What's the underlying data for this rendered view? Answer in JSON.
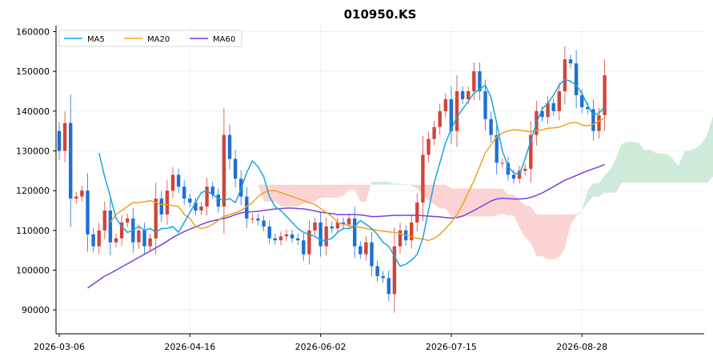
{
  "chart_data": {
    "type": "candlestick",
    "title": "010950.KS",
    "xlabel": "",
    "ylabel": "",
    "ylim": [
      84000,
      161500
    ],
    "y_ticks": [
      90000,
      100000,
      110000,
      120000,
      130000,
      140000,
      150000,
      160000
    ],
    "x_tick_labels": [
      "2026-03-06",
      "2026-04-16",
      "2026-06-02",
      "2026-07-15",
      "2026-08-28"
    ],
    "grid": true,
    "legend": {
      "placement": "top-left",
      "entries": [
        "MA5",
        "MA20",
        "MA60"
      ]
    },
    "colors": {
      "up": "#d0453a",
      "down": "#1f6fd6",
      "ma5": "#1aa3e0",
      "ma20": "#f0a020",
      "ma60": "#7b3fe0",
      "cloud_bull": "#cdebd8",
      "cloud_bear": "#fbd3d3"
    },
    "close": [
      130000,
      137000,
      118000,
      118500,
      120000,
      109000,
      106000,
      110000,
      115000,
      107000,
      108000,
      112000,
      113000,
      107000,
      110000,
      106000,
      108000,
      118000,
      114000,
      120000,
      124000,
      121000,
      118000,
      117000,
      115000,
      116000,
      121000,
      119000,
      116000,
      134000,
      128000,
      123000,
      118500,
      113000,
      113000,
      112500,
      111000,
      108000,
      107500,
      108500,
      109000,
      108000,
      107500,
      104000,
      110000,
      112000,
      106000,
      111000,
      110500,
      112000,
      111500,
      113000,
      106000,
      104000,
      107000,
      101000,
      98500,
      98000,
      94000,
      106000,
      110000,
      107500,
      112000,
      117000,
      129000,
      133000,
      136000,
      140000,
      143000,
      135000,
      145000,
      143000,
      145000,
      150000,
      145000,
      138000,
      134000,
      127000,
      127000,
      124000,
      123000,
      125000,
      125500,
      134000,
      140000,
      138500,
      142000,
      140000,
      145000,
      153000,
      152000,
      144000,
      141000,
      140500,
      135000,
      139000,
      149000
    ],
    "ma5": [
      129500,
      123500,
      118500,
      113000,
      111000,
      109500,
      110000,
      111000,
      110000,
      110500,
      109500,
      110500,
      110500,
      111000,
      109500,
      112000,
      114500,
      117000,
      119500,
      120000,
      119000,
      118000,
      117500,
      118000,
      117000,
      120500,
      124500,
      127500,
      126000,
      123500,
      118500,
      116000,
      115000,
      113500,
      112000,
      110500,
      109500,
      109000,
      108500,
      107500,
      107500,
      108000,
      109500,
      110500,
      110500,
      111000,
      112500,
      111500,
      110500,
      109000,
      107000,
      106000,
      103500,
      101000,
      101500,
      102500,
      104000,
      108000,
      115000,
      122000,
      127000,
      132000,
      135500,
      138500,
      140500,
      142500,
      144500,
      145500,
      146500,
      143500,
      137000,
      130000,
      126000,
      124500,
      124000,
      128000,
      132500,
      137000,
      140500,
      142000,
      144000,
      146500,
      148000,
      147500,
      146500,
      144500,
      141500,
      139000,
      139500,
      141000
    ],
    "ma20": [
      112000,
      114000,
      115000,
      116000,
      117000,
      117000,
      117200,
      117500,
      117000,
      116500,
      116500,
      116200,
      116000,
      114000,
      113000,
      111000,
      110500,
      110800,
      111500,
      112500,
      113500,
      114000,
      114500,
      115000,
      116000,
      117000,
      118500,
      119500,
      120000,
      120000,
      119500,
      119000,
      118500,
      118000,
      117500,
      117000,
      116500,
      115500,
      114500,
      113500,
      112000,
      111500,
      111200,
      111000,
      110800,
      110500,
      110200,
      110000,
      109800,
      109600,
      109500,
      109200,
      108800,
      108500,
      108000,
      107800,
      107500,
      108000,
      109000,
      110500,
      112000,
      114000,
      116500,
      119500,
      122500,
      126000,
      129500,
      131500,
      133500,
      134500,
      135000,
      135300,
      135200,
      135000,
      134800,
      135200,
      135300,
      135700,
      135800,
      136000,
      136500,
      137000,
      137200,
      136500,
      136300,
      136700,
      137500,
      138300
    ],
    "ma60": [
      95500,
      96500,
      97500,
      98500,
      99200,
      100000,
      100800,
      101600,
      102400,
      103200,
      104000,
      104800,
      105600,
      106400,
      107300,
      108200,
      109000,
      109700,
      110300,
      110900,
      111500,
      112000,
      112400,
      112700,
      113000,
      113400,
      114000,
      114400,
      114600,
      114700,
      114800,
      115000,
      115200,
      115400,
      115500,
      115600,
      115600,
      115500,
      115400,
      115200,
      114900,
      114600,
      114400,
      114200,
      114000,
      114000,
      114000,
      114000,
      113900,
      113700,
      113500,
      113500,
      113600,
      113700,
      113800,
      113800,
      113800,
      113800,
      113800,
      113700,
      113600,
      113500,
      113400,
      113200,
      113100,
      113200,
      113600,
      114300,
      115000,
      115800,
      116600,
      117400,
      117900,
      118100,
      118000,
      117900,
      117900,
      118000,
      118300,
      118800,
      119400,
      120200,
      121000,
      121800,
      122600,
      123200,
      123800,
      124400,
      125000,
      125500,
      126000,
      126600
    ]
  }
}
